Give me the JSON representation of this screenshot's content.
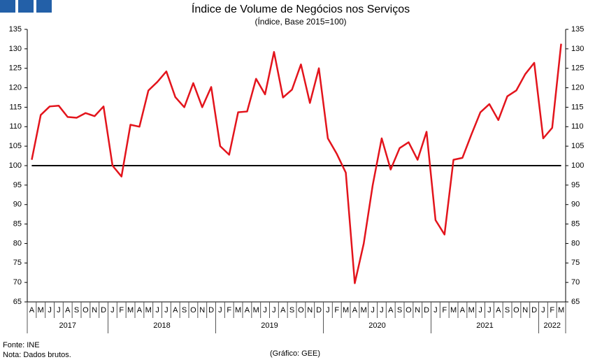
{
  "chart_data": {
    "type": "line",
    "title": "Índice de Volume de Negócios nos Serviços",
    "subtitle": "(Índice, Base 2015=100)",
    "categories": [
      "A",
      "M",
      "J",
      "J",
      "A",
      "S",
      "O",
      "N",
      "D",
      "J",
      "F",
      "M",
      "A",
      "M",
      "J",
      "J",
      "A",
      "S",
      "O",
      "N",
      "D",
      "J",
      "F",
      "M",
      "A",
      "M",
      "J",
      "J",
      "A",
      "S",
      "O",
      "N",
      "D",
      "J",
      "F",
      "M",
      "A",
      "M",
      "J",
      "J",
      "A",
      "S",
      "O",
      "N",
      "D",
      "J",
      "F",
      "M",
      "A",
      "M",
      "J",
      "J",
      "A",
      "S",
      "O",
      "N",
      "D",
      "J",
      "F",
      "M"
    ],
    "year_labels": [
      "2017",
      "2018",
      "2019",
      "2020",
      "2021",
      "2022"
    ],
    "series": [
      {
        "name": "Índice",
        "color": "#e3141c",
        "values": [
          101.5,
          113,
          115.2,
          115.4,
          112.5,
          112.3,
          113.5,
          112.7,
          115.2,
          100,
          97.2,
          110.5,
          110,
          119.3,
          121.5,
          124.2,
          117.6,
          115,
          121.2,
          115,
          120.2,
          105,
          102.8,
          113.7,
          113.9,
          122.3,
          118.3,
          129.2,
          117.5,
          119.5,
          126,
          116.1,
          125,
          107,
          103,
          98.2,
          69.8,
          80,
          95,
          107,
          99,
          104.5,
          106,
          101.5,
          108.7,
          86,
          82.3,
          101.5,
          102,
          108,
          113.7,
          115.8,
          111.7,
          117.8,
          119.3,
          123.5,
          126.4,
          107,
          109.7,
          131.3
        ]
      }
    ],
    "reference_line": 100,
    "ylim": [
      65,
      135
    ],
    "yticks": [
      65,
      70,
      75,
      80,
      85,
      90,
      95,
      100,
      105,
      110,
      115,
      120,
      125,
      130,
      135
    ],
    "y2lim": [
      65,
      135
    ],
    "y2ticks": [
      65,
      70,
      75,
      80,
      85,
      90,
      95,
      100,
      105,
      110,
      115,
      120,
      125,
      130,
      135
    ],
    "source": "Fonte: INE",
    "note": "Nota: Dados brutos.",
    "credit": "(Gráfico: GEE)"
  }
}
